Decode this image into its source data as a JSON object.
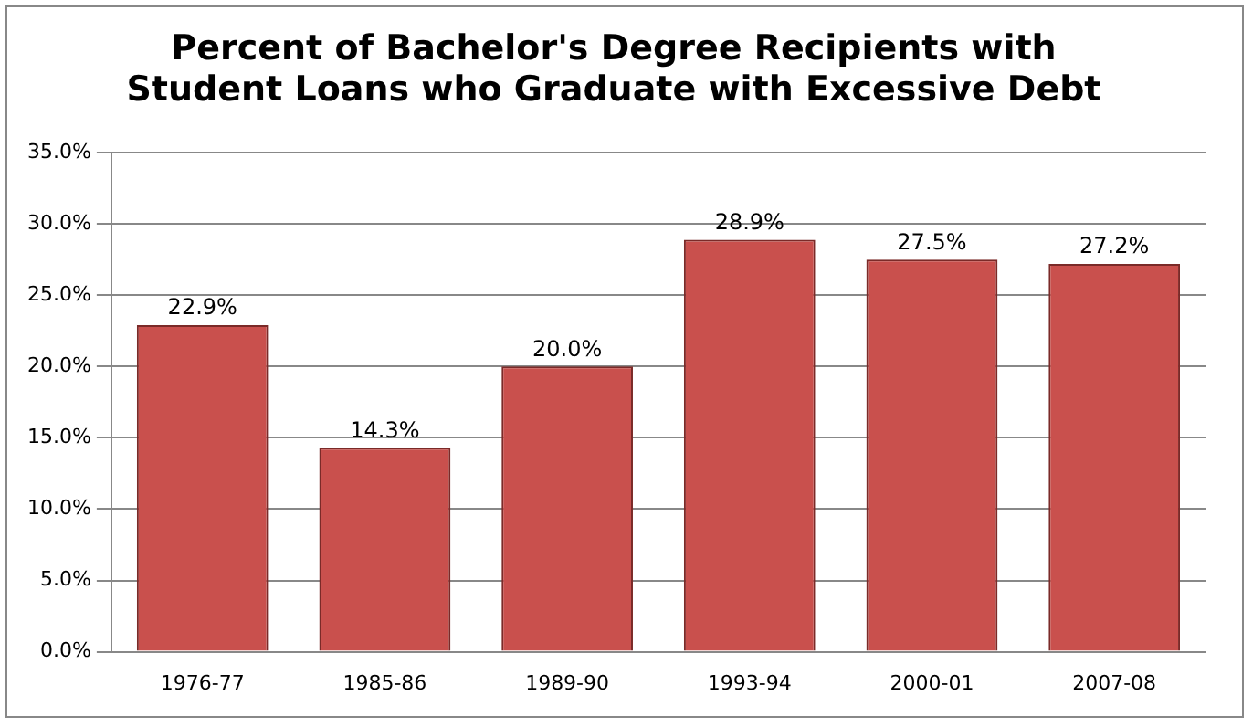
{
  "chart_data": {
    "type": "bar",
    "title": "Percent of Bachelor's Degree Recipients with\nStudent Loans who Graduate with Excessive Debt",
    "categories": [
      "1976-77",
      "1985-86",
      "1989-90",
      "1993-94",
      "2000-01",
      "2007-08"
    ],
    "values": [
      22.9,
      14.3,
      20.0,
      28.9,
      27.5,
      27.2
    ],
    "value_labels": [
      "22.9%",
      "14.3%",
      "20.0%",
      "28.9%",
      "27.5%",
      "27.2%"
    ],
    "color": "#c9504d",
    "ylim": [
      0,
      35
    ],
    "yticks": [
      {
        "value": 0,
        "label": "0.0%"
      },
      {
        "value": 5,
        "label": "5.0%"
      },
      {
        "value": 10,
        "label": "10.0%"
      },
      {
        "value": 15,
        "label": "15.0%"
      },
      {
        "value": 20,
        "label": "20.0%"
      },
      {
        "value": 25,
        "label": "25.0%"
      },
      {
        "value": 30,
        "label": "30.0%"
      },
      {
        "value": 35,
        "label": "35.0%"
      }
    ],
    "grid": "y",
    "legend": false
  }
}
